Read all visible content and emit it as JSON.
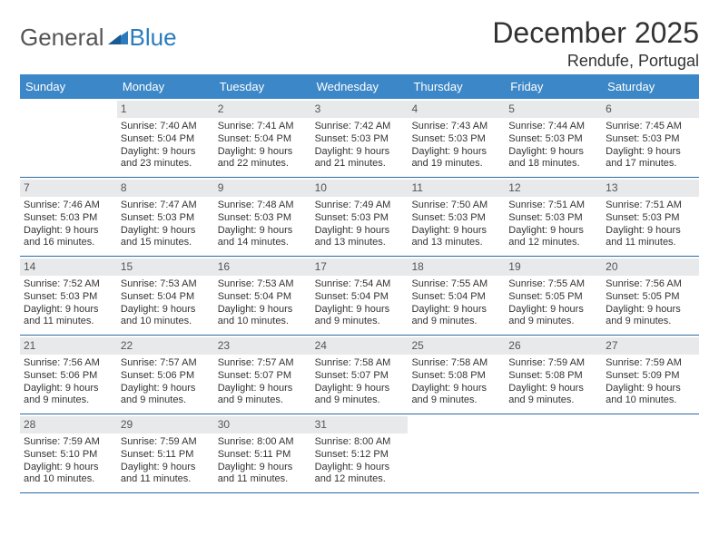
{
  "brand": {
    "name1": "General",
    "name2": "Blue"
  },
  "title": "December 2025",
  "location": "Rendufe, Portugal",
  "colors": {
    "header_bg": "#3c87c7",
    "header_text": "#ffffff",
    "week_divider": "#2b6aa3",
    "daynum_bg": "#e7e9eb",
    "body_text": "#333333",
    "background": "#ffffff"
  },
  "day_names": [
    "Sunday",
    "Monday",
    "Tuesday",
    "Wednesday",
    "Thursday",
    "Friday",
    "Saturday"
  ],
  "first_weekday_index": 1,
  "days": [
    {
      "n": 1,
      "sunrise": "7:40 AM",
      "sunset": "5:04 PM",
      "daylight": "9 hours and 23 minutes."
    },
    {
      "n": 2,
      "sunrise": "7:41 AM",
      "sunset": "5:04 PM",
      "daylight": "9 hours and 22 minutes."
    },
    {
      "n": 3,
      "sunrise": "7:42 AM",
      "sunset": "5:03 PM",
      "daylight": "9 hours and 21 minutes."
    },
    {
      "n": 4,
      "sunrise": "7:43 AM",
      "sunset": "5:03 PM",
      "daylight": "9 hours and 19 minutes."
    },
    {
      "n": 5,
      "sunrise": "7:44 AM",
      "sunset": "5:03 PM",
      "daylight": "9 hours and 18 minutes."
    },
    {
      "n": 6,
      "sunrise": "7:45 AM",
      "sunset": "5:03 PM",
      "daylight": "9 hours and 17 minutes."
    },
    {
      "n": 7,
      "sunrise": "7:46 AM",
      "sunset": "5:03 PM",
      "daylight": "9 hours and 16 minutes."
    },
    {
      "n": 8,
      "sunrise": "7:47 AM",
      "sunset": "5:03 PM",
      "daylight": "9 hours and 15 minutes."
    },
    {
      "n": 9,
      "sunrise": "7:48 AM",
      "sunset": "5:03 PM",
      "daylight": "9 hours and 14 minutes."
    },
    {
      "n": 10,
      "sunrise": "7:49 AM",
      "sunset": "5:03 PM",
      "daylight": "9 hours and 13 minutes."
    },
    {
      "n": 11,
      "sunrise": "7:50 AM",
      "sunset": "5:03 PM",
      "daylight": "9 hours and 13 minutes."
    },
    {
      "n": 12,
      "sunrise": "7:51 AM",
      "sunset": "5:03 PM",
      "daylight": "9 hours and 12 minutes."
    },
    {
      "n": 13,
      "sunrise": "7:51 AM",
      "sunset": "5:03 PM",
      "daylight": "9 hours and 11 minutes."
    },
    {
      "n": 14,
      "sunrise": "7:52 AM",
      "sunset": "5:03 PM",
      "daylight": "9 hours and 11 minutes."
    },
    {
      "n": 15,
      "sunrise": "7:53 AM",
      "sunset": "5:04 PM",
      "daylight": "9 hours and 10 minutes."
    },
    {
      "n": 16,
      "sunrise": "7:53 AM",
      "sunset": "5:04 PM",
      "daylight": "9 hours and 10 minutes."
    },
    {
      "n": 17,
      "sunrise": "7:54 AM",
      "sunset": "5:04 PM",
      "daylight": "9 hours and 9 minutes."
    },
    {
      "n": 18,
      "sunrise": "7:55 AM",
      "sunset": "5:04 PM",
      "daylight": "9 hours and 9 minutes."
    },
    {
      "n": 19,
      "sunrise": "7:55 AM",
      "sunset": "5:05 PM",
      "daylight": "9 hours and 9 minutes."
    },
    {
      "n": 20,
      "sunrise": "7:56 AM",
      "sunset": "5:05 PM",
      "daylight": "9 hours and 9 minutes."
    },
    {
      "n": 21,
      "sunrise": "7:56 AM",
      "sunset": "5:06 PM",
      "daylight": "9 hours and 9 minutes."
    },
    {
      "n": 22,
      "sunrise": "7:57 AM",
      "sunset": "5:06 PM",
      "daylight": "9 hours and 9 minutes."
    },
    {
      "n": 23,
      "sunrise": "7:57 AM",
      "sunset": "5:07 PM",
      "daylight": "9 hours and 9 minutes."
    },
    {
      "n": 24,
      "sunrise": "7:58 AM",
      "sunset": "5:07 PM",
      "daylight": "9 hours and 9 minutes."
    },
    {
      "n": 25,
      "sunrise": "7:58 AM",
      "sunset": "5:08 PM",
      "daylight": "9 hours and 9 minutes."
    },
    {
      "n": 26,
      "sunrise": "7:59 AM",
      "sunset": "5:08 PM",
      "daylight": "9 hours and 9 minutes."
    },
    {
      "n": 27,
      "sunrise": "7:59 AM",
      "sunset": "5:09 PM",
      "daylight": "9 hours and 10 minutes."
    },
    {
      "n": 28,
      "sunrise": "7:59 AM",
      "sunset": "5:10 PM",
      "daylight": "9 hours and 10 minutes."
    },
    {
      "n": 29,
      "sunrise": "7:59 AM",
      "sunset": "5:11 PM",
      "daylight": "9 hours and 11 minutes."
    },
    {
      "n": 30,
      "sunrise": "8:00 AM",
      "sunset": "5:11 PM",
      "daylight": "9 hours and 11 minutes."
    },
    {
      "n": 31,
      "sunrise": "8:00 AM",
      "sunset": "5:12 PM",
      "daylight": "9 hours and 12 minutes."
    }
  ],
  "labels": {
    "sunrise": "Sunrise:",
    "sunset": "Sunset:",
    "daylight": "Daylight:"
  }
}
